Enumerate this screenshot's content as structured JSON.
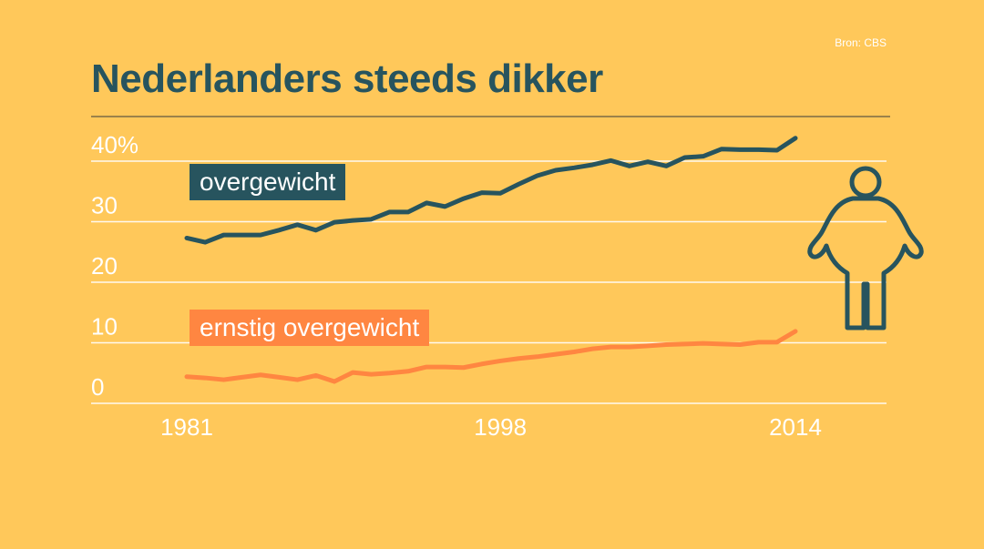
{
  "source": "Bron: CBS",
  "title": "Nederlanders steeds dikker",
  "colors": {
    "background": "#FFC85A",
    "dark_series": "#27545E",
    "orange_series": "#FF8641",
    "text": "#ffffff"
  },
  "icon": "obese-person-icon",
  "chart_data": {
    "type": "line",
    "title": "Nederlanders steeds dikker",
    "xlabel": "",
    "ylabel": "",
    "x": [
      1981,
      1982,
      1983,
      1984,
      1985,
      1986,
      1987,
      1988,
      1989,
      1990,
      1991,
      1992,
      1993,
      1994,
      1995,
      1996,
      1997,
      1998,
      1999,
      2000,
      2001,
      2002,
      2003,
      2004,
      2005,
      2006,
      2007,
      2008,
      2009,
      2010,
      2011,
      2012,
      2013,
      2014
    ],
    "xlim": [
      1981,
      2014
    ],
    "ylim": [
      0,
      40
    ],
    "x_tick_labels": [
      "1981",
      "1998",
      "2014"
    ],
    "x_tick_values": [
      1981,
      1998,
      2014
    ],
    "y_tick_labels": [
      "40%",
      "30",
      "20",
      "10",
      "0"
    ],
    "y_tick_values": [
      40,
      30,
      20,
      10,
      0
    ],
    "series": [
      {
        "name": "overgewicht",
        "label": "overgewicht",
        "color": "#27545E",
        "values": [
          27.3,
          26.6,
          27.8,
          27.8,
          27.8,
          28.6,
          29.5,
          28.6,
          29.9,
          30.2,
          30.4,
          31.6,
          31.6,
          33.1,
          32.5,
          33.8,
          34.8,
          34.7,
          36.2,
          37.6,
          38.5,
          38.9,
          39.4,
          40.1,
          39.2,
          39.9,
          39.2,
          40.6,
          40.8,
          42.0,
          41.9,
          41.9,
          41.8,
          43.8
        ]
      },
      {
        "name": "ernstig overgewicht",
        "label": "ernstig overgewicht",
        "color": "#FF8641",
        "values": [
          4.4,
          4.2,
          3.9,
          4.3,
          4.7,
          4.3,
          3.9,
          4.6,
          3.6,
          5.1,
          4.8,
          5.0,
          5.3,
          6.0,
          6.0,
          5.9,
          6.5,
          7.0,
          7.4,
          7.7,
          8.1,
          8.5,
          9.0,
          9.3,
          9.3,
          9.5,
          9.7,
          9.8,
          9.9,
          9.8,
          9.7,
          10.1,
          10.1,
          11.9
        ]
      }
    ]
  }
}
